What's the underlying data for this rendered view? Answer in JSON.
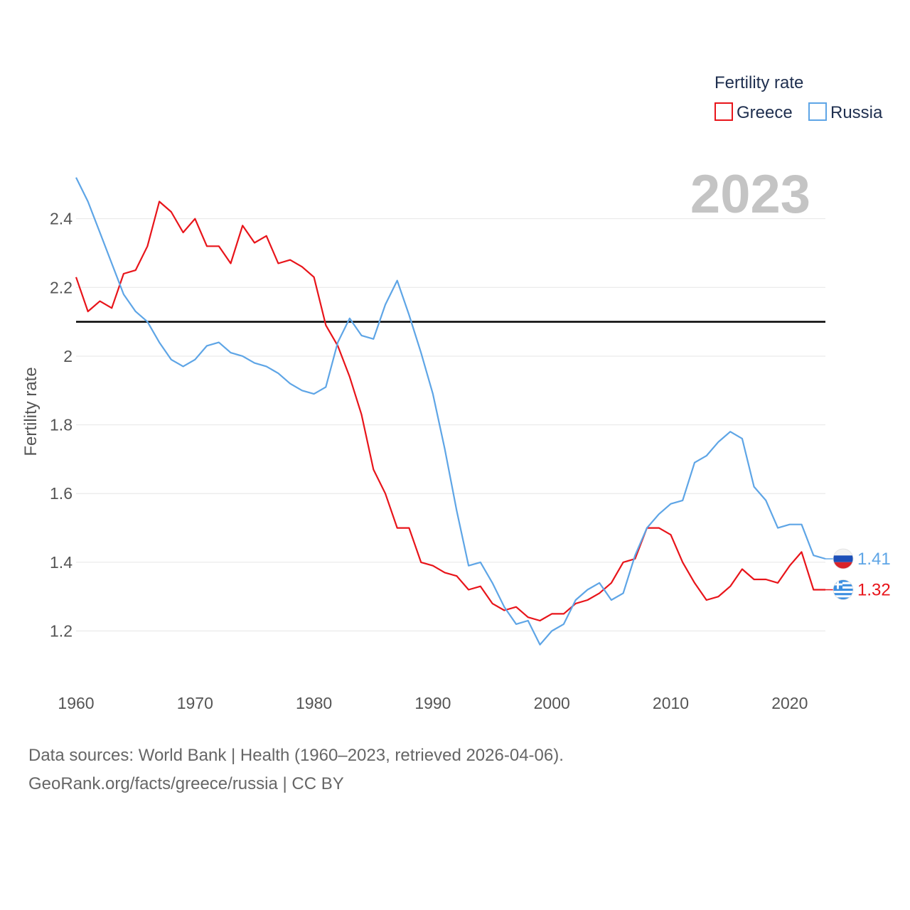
{
  "chart_data": {
    "type": "line",
    "legend_title": "Fertility rate",
    "ylabel": "Fertility rate",
    "current_year": "2023",
    "ylim": [
      1.05,
      2.54
    ],
    "xlim": [
      1960,
      2023
    ],
    "yticks": [
      1.2,
      1.4,
      1.6,
      1.8,
      2.0,
      2.2,
      2.4
    ],
    "ytick_labels": [
      "1.2",
      "1.4",
      "1.6",
      "1.8",
      "2",
      "2.2",
      "2.4"
    ],
    "xticks": [
      1960,
      1970,
      1980,
      1990,
      2000,
      2010,
      2020
    ],
    "xtick_labels": [
      "1960",
      "1970",
      "1980",
      "1990",
      "2000",
      "2010",
      "2020"
    ],
    "reference_line": {
      "value": 2.1,
      "color": "#000000"
    },
    "x": [
      1960,
      1961,
      1962,
      1963,
      1964,
      1965,
      1966,
      1967,
      1968,
      1969,
      1970,
      1971,
      1972,
      1973,
      1974,
      1975,
      1976,
      1977,
      1978,
      1979,
      1980,
      1981,
      1982,
      1983,
      1984,
      1985,
      1986,
      1987,
      1988,
      1989,
      1990,
      1991,
      1992,
      1993,
      1994,
      1995,
      1996,
      1997,
      1998,
      1999,
      2000,
      2001,
      2002,
      2003,
      2004,
      2005,
      2006,
      2007,
      2008,
      2009,
      2010,
      2011,
      2012,
      2013,
      2014,
      2015,
      2016,
      2017,
      2018,
      2019,
      2020,
      2021,
      2022,
      2023
    ],
    "series": [
      {
        "name": "Greece",
        "color": "#e8141a",
        "end_label": "1.32",
        "flag": "greece-flag-icon",
        "values": [
          2.23,
          2.13,
          2.16,
          2.14,
          2.24,
          2.25,
          2.32,
          2.45,
          2.42,
          2.36,
          2.4,
          2.32,
          2.32,
          2.27,
          2.38,
          2.33,
          2.35,
          2.27,
          2.28,
          2.26,
          2.23,
          2.09,
          2.03,
          1.94,
          1.83,
          1.67,
          1.6,
          1.5,
          1.5,
          1.4,
          1.39,
          1.37,
          1.36,
          1.32,
          1.33,
          1.28,
          1.26,
          1.27,
          1.24,
          1.23,
          1.25,
          1.25,
          1.28,
          1.29,
          1.31,
          1.34,
          1.4,
          1.41,
          1.5,
          1.5,
          1.48,
          1.4,
          1.34,
          1.29,
          1.3,
          1.33,
          1.38,
          1.35,
          1.35,
          1.34,
          1.39,
          1.43,
          1.32,
          1.32
        ]
      },
      {
        "name": "Russia",
        "color": "#5ea5e6",
        "end_label": "1.41",
        "flag": "russia-flag-icon",
        "values": [
          2.52,
          2.45,
          2.36,
          2.27,
          2.18,
          2.13,
          2.1,
          2.04,
          1.99,
          1.97,
          1.99,
          2.03,
          2.04,
          2.01,
          2.0,
          1.98,
          1.97,
          1.95,
          1.92,
          1.9,
          1.89,
          1.91,
          2.04,
          2.11,
          2.06,
          2.05,
          2.15,
          2.22,
          2.12,
          2.01,
          1.89,
          1.73,
          1.55,
          1.39,
          1.4,
          1.34,
          1.27,
          1.22,
          1.23,
          1.16,
          1.2,
          1.22,
          1.29,
          1.32,
          1.34,
          1.29,
          1.31,
          1.42,
          1.5,
          1.54,
          1.57,
          1.58,
          1.69,
          1.71,
          1.75,
          1.78,
          1.76,
          1.62,
          1.58,
          1.5,
          1.51,
          1.51,
          1.42,
          1.41
        ]
      }
    ]
  },
  "footer": {
    "source_line": "Data sources: World Bank | Health (1960–2023, retrieved 2026-04-06).",
    "attribution_line": "GeoRank.org/facts/greece/russia | CC BY"
  }
}
